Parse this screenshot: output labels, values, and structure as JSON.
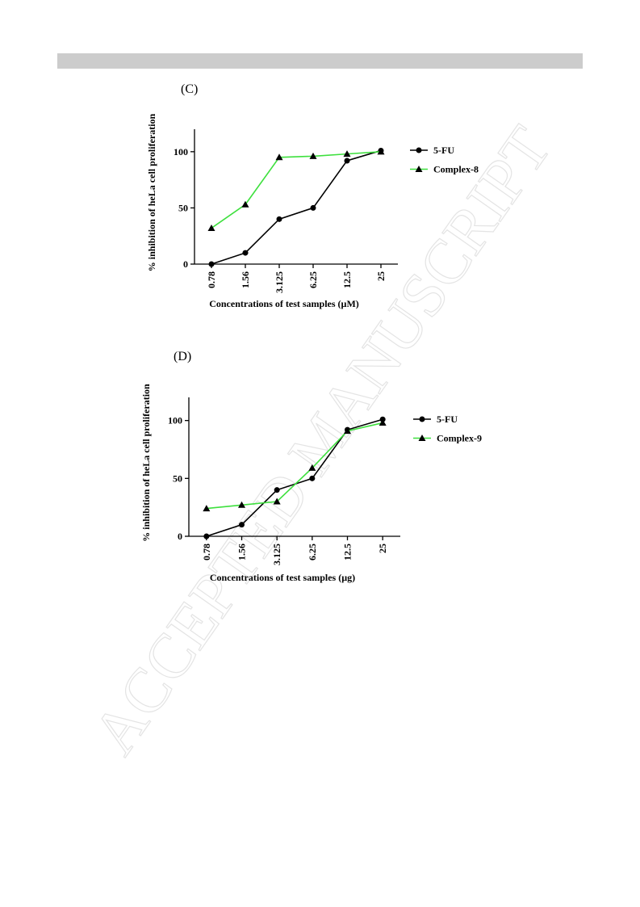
{
  "watermark": "ACCEPTED MANUSCRIPT",
  "chart_data": [
    {
      "type": "line",
      "panel": "(C)",
      "y_label": "% inhibition of heLa cell proliferation",
      "x_label": "Concentrations of test samples (µM)",
      "categories": [
        "0.78",
        "1.56",
        "3.125",
        "6.25",
        "12.5",
        "25"
      ],
      "series": [
        {
          "name": "5-FU",
          "color": "#000000",
          "marker": "circle",
          "values": [
            0,
            10,
            40,
            50,
            92,
            101
          ]
        },
        {
          "name": "Complex-8",
          "color": "#3ee03e",
          "marker": "triangle",
          "values": [
            32,
            53,
            95,
            96,
            98,
            100
          ]
        }
      ],
      "ylim": [
        0,
        120
      ],
      "yticks": [
        0,
        50,
        100
      ]
    },
    {
      "type": "line",
      "panel": "(D)",
      "y_label": "% inhibition of heLa cell proliferation",
      "x_label": "Concentrations of test samples (µg)",
      "categories": [
        "0.78",
        "1.56",
        "3.125",
        "6.25",
        "12.5",
        "25"
      ],
      "series": [
        {
          "name": "5-FU",
          "color": "#000000",
          "marker": "circle",
          "values": [
            0,
            10,
            40,
            50,
            92,
            101
          ]
        },
        {
          "name": "Complex-9",
          "color": "#3ee03e",
          "marker": "triangle",
          "values": [
            24,
            27,
            30,
            59,
            91,
            98
          ]
        }
      ],
      "ylim": [
        0,
        120
      ],
      "yticks": [
        0,
        50,
        100
      ]
    }
  ]
}
